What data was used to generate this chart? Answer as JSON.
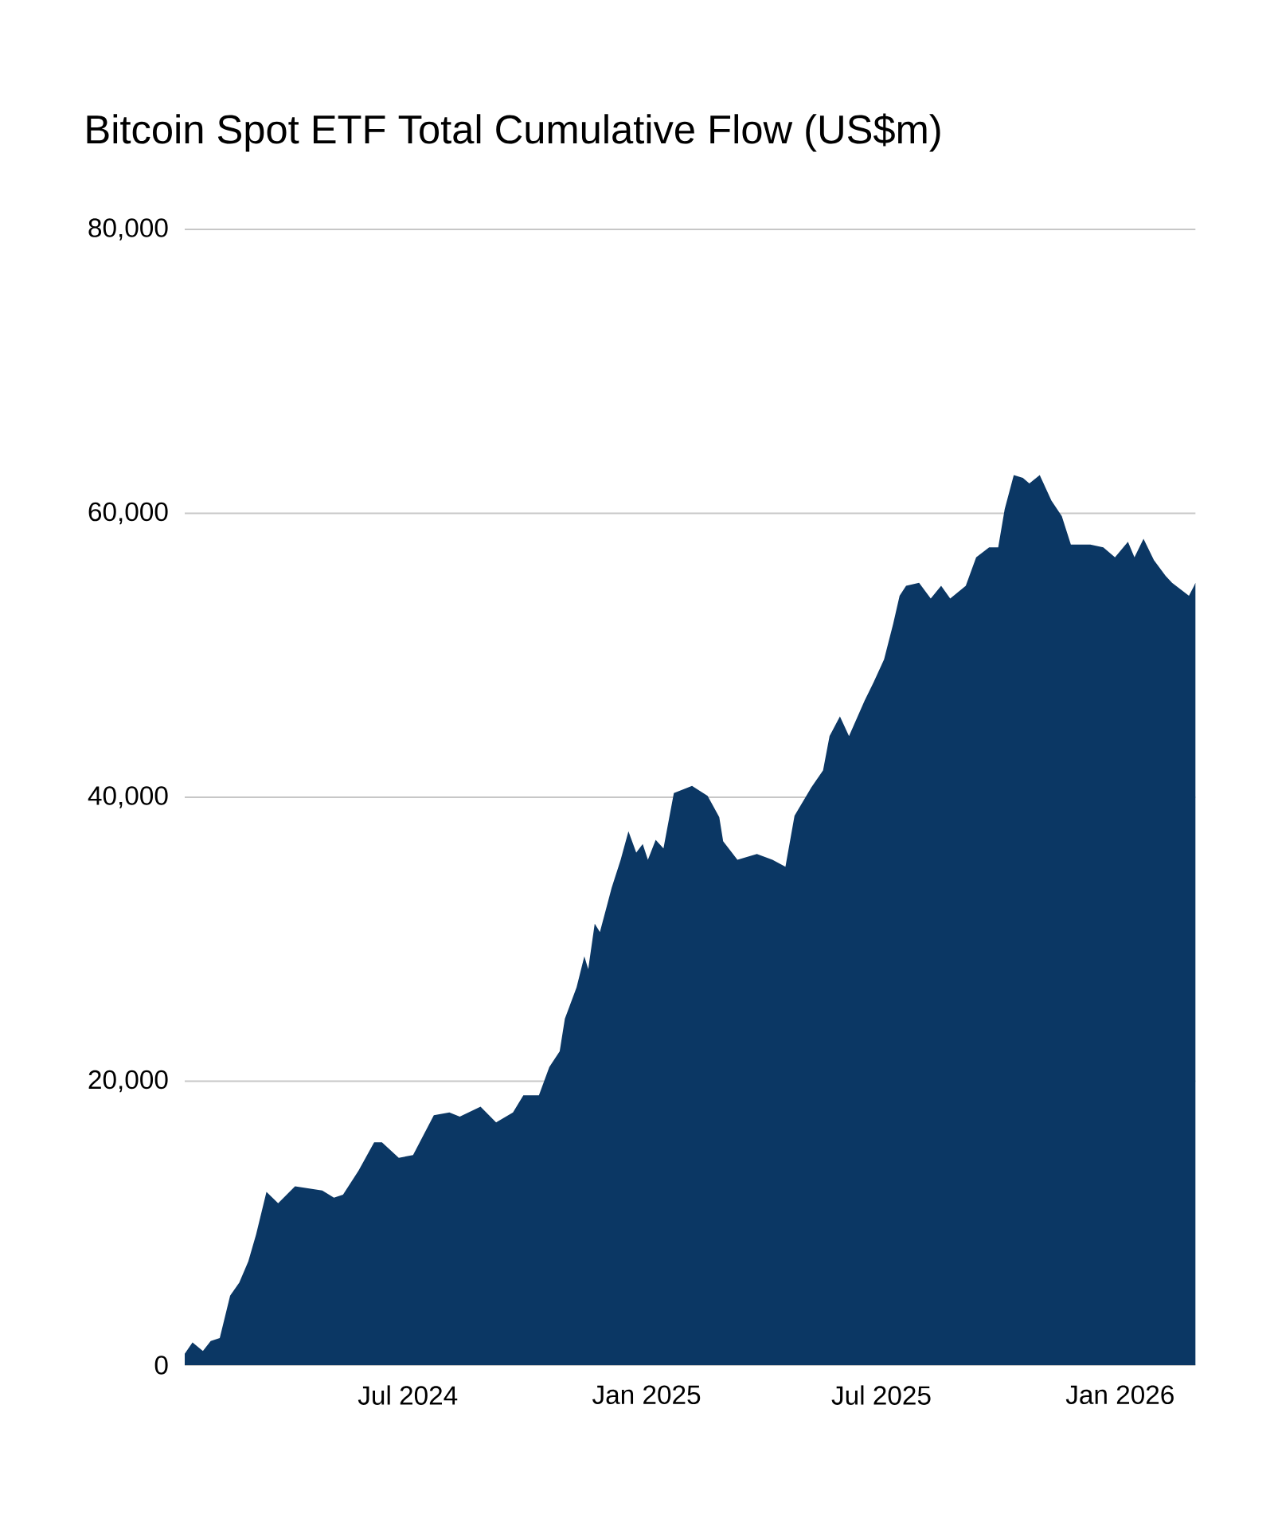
{
  "chart_data": {
    "type": "area",
    "title": "Bitcoin Spot ETF Total Cumulative Flow (US$m)",
    "x": [
      "2024-01-11",
      "2024-01-17",
      "2024-01-25",
      "2024-01-31",
      "2024-02-07",
      "2024-02-15",
      "2024-02-22",
      "2024-02-29",
      "2024-03-06",
      "2024-03-14",
      "2024-03-23",
      "2024-04-05",
      "2024-04-26",
      "2024-05-05",
      "2024-05-12",
      "2024-05-24",
      "2024-06-05",
      "2024-06-11",
      "2024-06-24",
      "2024-07-05",
      "2024-07-21",
      "2024-08-02",
      "2024-08-10",
      "2024-08-26",
      "2024-09-07",
      "2024-09-20",
      "2024-09-28",
      "2024-10-10",
      "2024-10-18",
      "2024-10-26",
      "2024-10-30",
      "2024-11-08",
      "2024-11-14",
      "2024-11-17",
      "2024-11-22",
      "2024-11-26",
      "2024-12-05",
      "2024-12-12",
      "2024-12-18",
      "2024-12-24",
      "2024-12-29",
      "2025-01-02",
      "2025-01-08",
      "2025-01-14",
      "2025-01-22",
      "2025-02-05",
      "2025-02-17",
      "2025-02-26",
      "2025-03-01",
      "2025-03-12",
      "2025-03-27",
      "2025-04-08",
      "2025-04-18",
      "2025-04-25",
      "2025-05-08",
      "2025-05-17",
      "2025-05-22",
      "2025-05-30",
      "2025-06-06",
      "2025-06-18",
      "2025-06-25",
      "2025-07-03",
      "2025-07-10",
      "2025-07-15",
      "2025-07-20",
      "2025-07-30",
      "2025-08-08",
      "2025-08-16",
      "2025-08-23",
      "2025-09-04",
      "2025-09-12",
      "2025-09-22",
      "2025-09-29",
      "2025-10-04",
      "2025-10-11",
      "2025-10-18",
      "2025-10-23",
      "2025-10-31",
      "2025-11-09",
      "2025-11-17",
      "2025-11-24",
      "2025-12-09",
      "2025-12-19",
      "2025-12-28",
      "2026-01-07",
      "2026-01-12",
      "2026-01-19",
      "2026-01-27",
      "2026-02-05",
      "2026-02-10",
      "2026-02-23",
      "2026-02-27",
      "2026-02-28"
    ],
    "values": [
      800,
      1600,
      1000,
      1700,
      1900,
      4900,
      5800,
      7300,
      9200,
      12200,
      11400,
      12600,
      12300,
      11800,
      12000,
      13700,
      15700,
      15700,
      14600,
      14800,
      17600,
      17800,
      17500,
      18200,
      17100,
      17800,
      19000,
      19000,
      21000,
      22100,
      24400,
      26600,
      28800,
      27900,
      31100,
      30500,
      33600,
      35600,
      37600,
      36100,
      36700,
      35600,
      37000,
      36400,
      40300,
      40800,
      40100,
      38600,
      36900,
      35600,
      36000,
      35600,
      35100,
      38700,
      40700,
      41900,
      44300,
      45700,
      44300,
      46800,
      48100,
      49700,
      52200,
      54200,
      54900,
      55100,
      54000,
      54900,
      54000,
      54900,
      56900,
      57600,
      57600,
      60300,
      62700,
      62500,
      62100,
      62700,
      60900,
      59800,
      57800,
      57800,
      57600,
      56900,
      58000,
      56900,
      58200,
      56700,
      55600,
      55100,
      54200,
      54900,
      55100
    ],
    "color": "#0b3764",
    "xlim": [
      "2024-01-11",
      "2026-02-28"
    ],
    "xticks": [
      {
        "value": "2024-07-01",
        "label": "Jul 2024"
      },
      {
        "value": "2025-01-01",
        "label": "Jan 2025"
      },
      {
        "value": "2025-07-01",
        "label": "Jul 2025"
      },
      {
        "value": "2026-01-01",
        "label": "Jan 2026"
      }
    ],
    "ylim": [
      0,
      80000
    ],
    "yticks": [
      0,
      {
        "value": 20000,
        "label": "20,000"
      },
      {
        "value": 40000,
        "label": "40,000"
      },
      {
        "value": 60000,
        "label": "60,000"
      },
      {
        "value": 80000,
        "label": "80,000"
      }
    ],
    "grid": "y"
  }
}
